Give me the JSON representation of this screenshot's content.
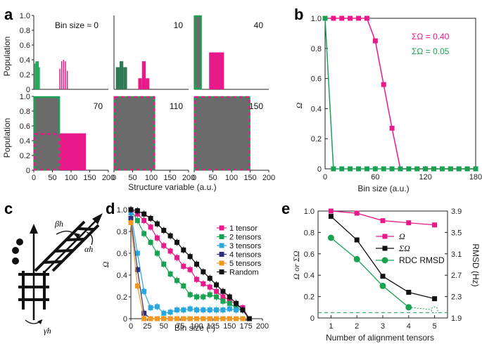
{
  "panels": {
    "a": "a",
    "b": "b",
    "c": "c",
    "d": "d",
    "e": "e"
  },
  "chart_data": [
    {
      "panel": "a",
      "type": "bar",
      "ylabel": "Population",
      "xlabel": "Structure variable (a.u.)",
      "xticks": [
        "0",
        "50",
        "100",
        "150",
        "200"
      ],
      "yticks": [
        "0",
        "0.2",
        "0.4",
        "0.6",
        "0.8",
        "1.0"
      ],
      "subplots": [
        {
          "label": "Bin size ≈ 0",
          "green": [
            [
              3,
              0.35
            ],
            [
              6,
              0.38
            ],
            [
              9,
              0.38
            ],
            [
              12,
              0.38
            ],
            [
              15,
              0.3
            ]
          ],
          "pink": [
            [
              70,
              0.28
            ],
            [
              75,
              0.38
            ],
            [
              80,
              0.4
            ],
            [
              85,
              0.38
            ],
            [
              90,
              0.25
            ]
          ]
        },
        {
          "label": "10",
          "green": [
            [
              10,
              0.3
            ],
            [
              20,
              0.38
            ],
            [
              30,
              0.3
            ]
          ],
          "pink": [
            [
              70,
              0.15
            ],
            [
              80,
              0.38
            ],
            [
              90,
              0.15
            ]
          ]
        },
        {
          "label": "40",
          "green": [
            [
              0,
              1.0
            ]
          ],
          "pink": [
            [
              40,
              0.5
            ]
          ]
        },
        {
          "label": "70",
          "green": [
            [
              0,
              1.0
            ]
          ],
          "pink": [
            [
              0,
              0.5
            ],
            [
              70,
              0.5
            ]
          ]
        },
        {
          "label": "110",
          "green": [
            [
              0,
              1.0
            ]
          ],
          "pink": [
            [
              0,
              1.0
            ]
          ]
        },
        {
          "label": "150",
          "green": [
            [
              0,
              1.0
            ]
          ],
          "pink": [
            [
              0,
              1.0
            ]
          ]
        }
      ]
    },
    {
      "panel": "b",
      "type": "line",
      "xlabel": "Bin size (a.u.)",
      "ylabel": "Ω",
      "xticks": [
        "0",
        "60",
        "120",
        "180"
      ],
      "yticks": [
        "0",
        "0.2",
        "0.4",
        "0.6",
        "0.8",
        "1.0"
      ],
      "xlim": [
        0,
        180
      ],
      "ylim": [
        0,
        1.0
      ],
      "annotations": [
        "ΣΩ = 0.40",
        "ΣΩ = 0.05"
      ],
      "series": [
        {
          "name": "pink",
          "color": "#e8198b",
          "x": [
            0,
            10,
            20,
            30,
            40,
            50,
            60,
            70,
            80,
            90,
            100,
            110,
            120,
            130,
            140,
            150,
            160,
            170,
            180
          ],
          "y": [
            1,
            1,
            1,
            1,
            1,
            1,
            0.85,
            0.56,
            0.27,
            0,
            0,
            0,
            0,
            0,
            0,
            0,
            0,
            0,
            0
          ]
        },
        {
          "name": "green",
          "color": "#1aa253",
          "x": [
            0,
            10,
            20,
            30,
            40,
            50,
            60,
            70,
            80,
            90,
            100,
            110,
            120,
            130,
            140,
            150,
            160,
            170,
            180
          ],
          "y": [
            1,
            0,
            0,
            0,
            0,
            0,
            0,
            0,
            0,
            0,
            0,
            0,
            0,
            0,
            0,
            0,
            0,
            0,
            0
          ]
        }
      ]
    },
    {
      "panel": "d",
      "type": "line",
      "xlabel": "Bin size (°)",
      "ylabel": "Ω",
      "xticks": [
        "0",
        "25",
        "50",
        "75",
        "100",
        "125",
        "150",
        "175",
        "200"
      ],
      "yticks": [
        "0",
        "0.2",
        "0.4",
        "0.6",
        "0.8",
        "1.0"
      ],
      "xlim": [
        0,
        200
      ],
      "ylim": [
        0,
        1.0
      ],
      "series": [
        {
          "name": "1 tensor",
          "color": "#e8198b",
          "x": [
            0,
            10,
            20,
            30,
            40,
            50,
            60,
            70,
            80,
            90,
            100,
            110,
            120,
            130,
            140,
            150,
            160,
            170,
            180
          ],
          "y": [
            1.0,
            0.96,
            0.9,
            0.84,
            0.74,
            0.67,
            0.62,
            0.56,
            0.48,
            0.45,
            0.36,
            0.32,
            0.29,
            0.25,
            0.2,
            0.17,
            0.13,
            0.1,
            0
          ]
        },
        {
          "name": "2 tensors",
          "color": "#1aa253",
          "x": [
            0,
            10,
            20,
            30,
            40,
            50,
            60,
            70,
            80,
            90,
            100,
            110,
            120,
            130,
            140,
            150,
            160,
            170,
            180
          ],
          "y": [
            1.0,
            0.9,
            0.78,
            0.7,
            0.6,
            0.5,
            0.41,
            0.35,
            0.3,
            0.22,
            0.2,
            0.2,
            0.22,
            0.2,
            0.16,
            0.14,
            0.1,
            0.08,
            0
          ]
        },
        {
          "name": "3 tensors",
          "color": "#29a8e0",
          "x": [
            0,
            10,
            20,
            30,
            40,
            50,
            60,
            70,
            80,
            90,
            100,
            110,
            120,
            130,
            140,
            150,
            160,
            170,
            180
          ],
          "y": [
            0.97,
            0.6,
            0.25,
            0.1,
            0.11,
            0.05,
            0.06,
            0.08,
            0.08,
            0.09,
            0.08,
            0.08,
            0.08,
            0.08,
            0.08,
            0.09,
            0.08,
            0.08,
            0
          ]
        },
        {
          "name": "4 tensors",
          "color": "#2e2e80",
          "x": [
            0,
            10,
            20,
            30,
            40,
            50,
            60,
            70,
            80,
            90,
            100,
            110,
            120,
            130,
            140,
            150,
            160,
            170,
            180
          ],
          "y": [
            0.92,
            0.45,
            0.05,
            0,
            0,
            0,
            0,
            0,
            0,
            0,
            0,
            0,
            0,
            0,
            0,
            0,
            0,
            0,
            0
          ]
        },
        {
          "name": "5 tensors",
          "color": "#f2981f",
          "x": [
            0,
            10,
            20,
            30,
            40,
            50,
            60,
            70,
            80,
            90,
            100,
            110,
            120,
            130,
            140,
            150,
            160,
            170,
            180
          ],
          "y": [
            0.88,
            0.3,
            0,
            0,
            0,
            0,
            0,
            0,
            0,
            0,
            0,
            0,
            0,
            0,
            0,
            0,
            0,
            0,
            0
          ]
        },
        {
          "name": "Random",
          "color": "#111111",
          "x": [
            0,
            10,
            20,
            30,
            40,
            50,
            60,
            70,
            80,
            90,
            100,
            110,
            120,
            130,
            140,
            150,
            160,
            170,
            180
          ],
          "y": [
            1.0,
            0.99,
            0.96,
            0.92,
            0.87,
            0.81,
            0.76,
            0.7,
            0.63,
            0.57,
            0.5,
            0.43,
            0.37,
            0.31,
            0.25,
            0.2,
            0.14,
            0.08,
            0
          ]
        }
      ]
    },
    {
      "panel": "e",
      "type": "line",
      "xlabel": "Number of alignment tensors",
      "ylabel": "Ω or ΣΩ",
      "y2label": "RMSD (Hz)",
      "xticks": [
        "1",
        "2",
        "3",
        "4",
        "5"
      ],
      "yticks": [
        "0",
        "0.2",
        "0.4",
        "0.6",
        "0.8",
        "1.0"
      ],
      "y2ticks": [
        "1.9",
        "2.3",
        "2.7",
        "3.1",
        "3.5",
        "3.9"
      ],
      "xlim": [
        0.5,
        5.5
      ],
      "ylim": [
        0,
        1.0
      ],
      "y2lim": [
        1.9,
        3.9
      ],
      "baseline": 0.05,
      "series": [
        {
          "name": "Ω",
          "color": "#e8198b",
          "marker": "square",
          "axis": "left",
          "x": [
            1,
            2,
            3,
            4,
            5
          ],
          "y": [
            1.0,
            0.98,
            0.91,
            0.89,
            0.87
          ]
        },
        {
          "name": "ΣΩ",
          "color": "#111111",
          "marker": "square",
          "axis": "left",
          "x": [
            1,
            2,
            3,
            4,
            5
          ],
          "y": [
            0.95,
            0.73,
            0.39,
            0.24,
            0.18
          ]
        },
        {
          "name": "RDC RMSD",
          "color": "#1aa253",
          "marker": "circle",
          "axis": "right",
          "x": [
            1,
            2,
            3,
            4,
            5
          ],
          "y": [
            3.4,
            3.0,
            2.5,
            2.1,
            2.05
          ]
        }
      ]
    }
  ],
  "schematic": {
    "labels": [
      "βh",
      "αh",
      "γh"
    ]
  }
}
